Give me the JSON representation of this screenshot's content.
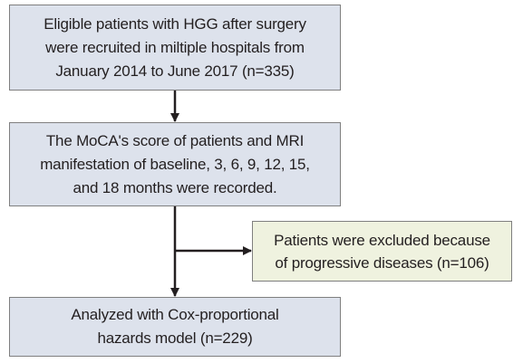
{
  "diagram": {
    "steps": [
      {
        "id": "box1",
        "text": "Eligible patients with HGG after surgery\nwere recruited in miltiple hospitals from\nJanuary 2014 to June 2017 (n=335)"
      },
      {
        "id": "box2",
        "text": "The MoCA's score of patients and MRI\nmanifestation of baseline, 3, 6, 9, 12, 15,\nand 18 months were recorded."
      },
      {
        "id": "box3",
        "text": "Patients were excluded because\nof progressive diseases (n=106)"
      },
      {
        "id": "box4",
        "text": "Analyzed with Cox-proportional\nhazards model (n=229)"
      }
    ],
    "colors": {
      "main_box_fill": "#dde2ec",
      "exclusion_box_fill": "#eff2df",
      "border": "#7f7f7f",
      "arrow": "#231f20",
      "text": "#231f20"
    }
  }
}
